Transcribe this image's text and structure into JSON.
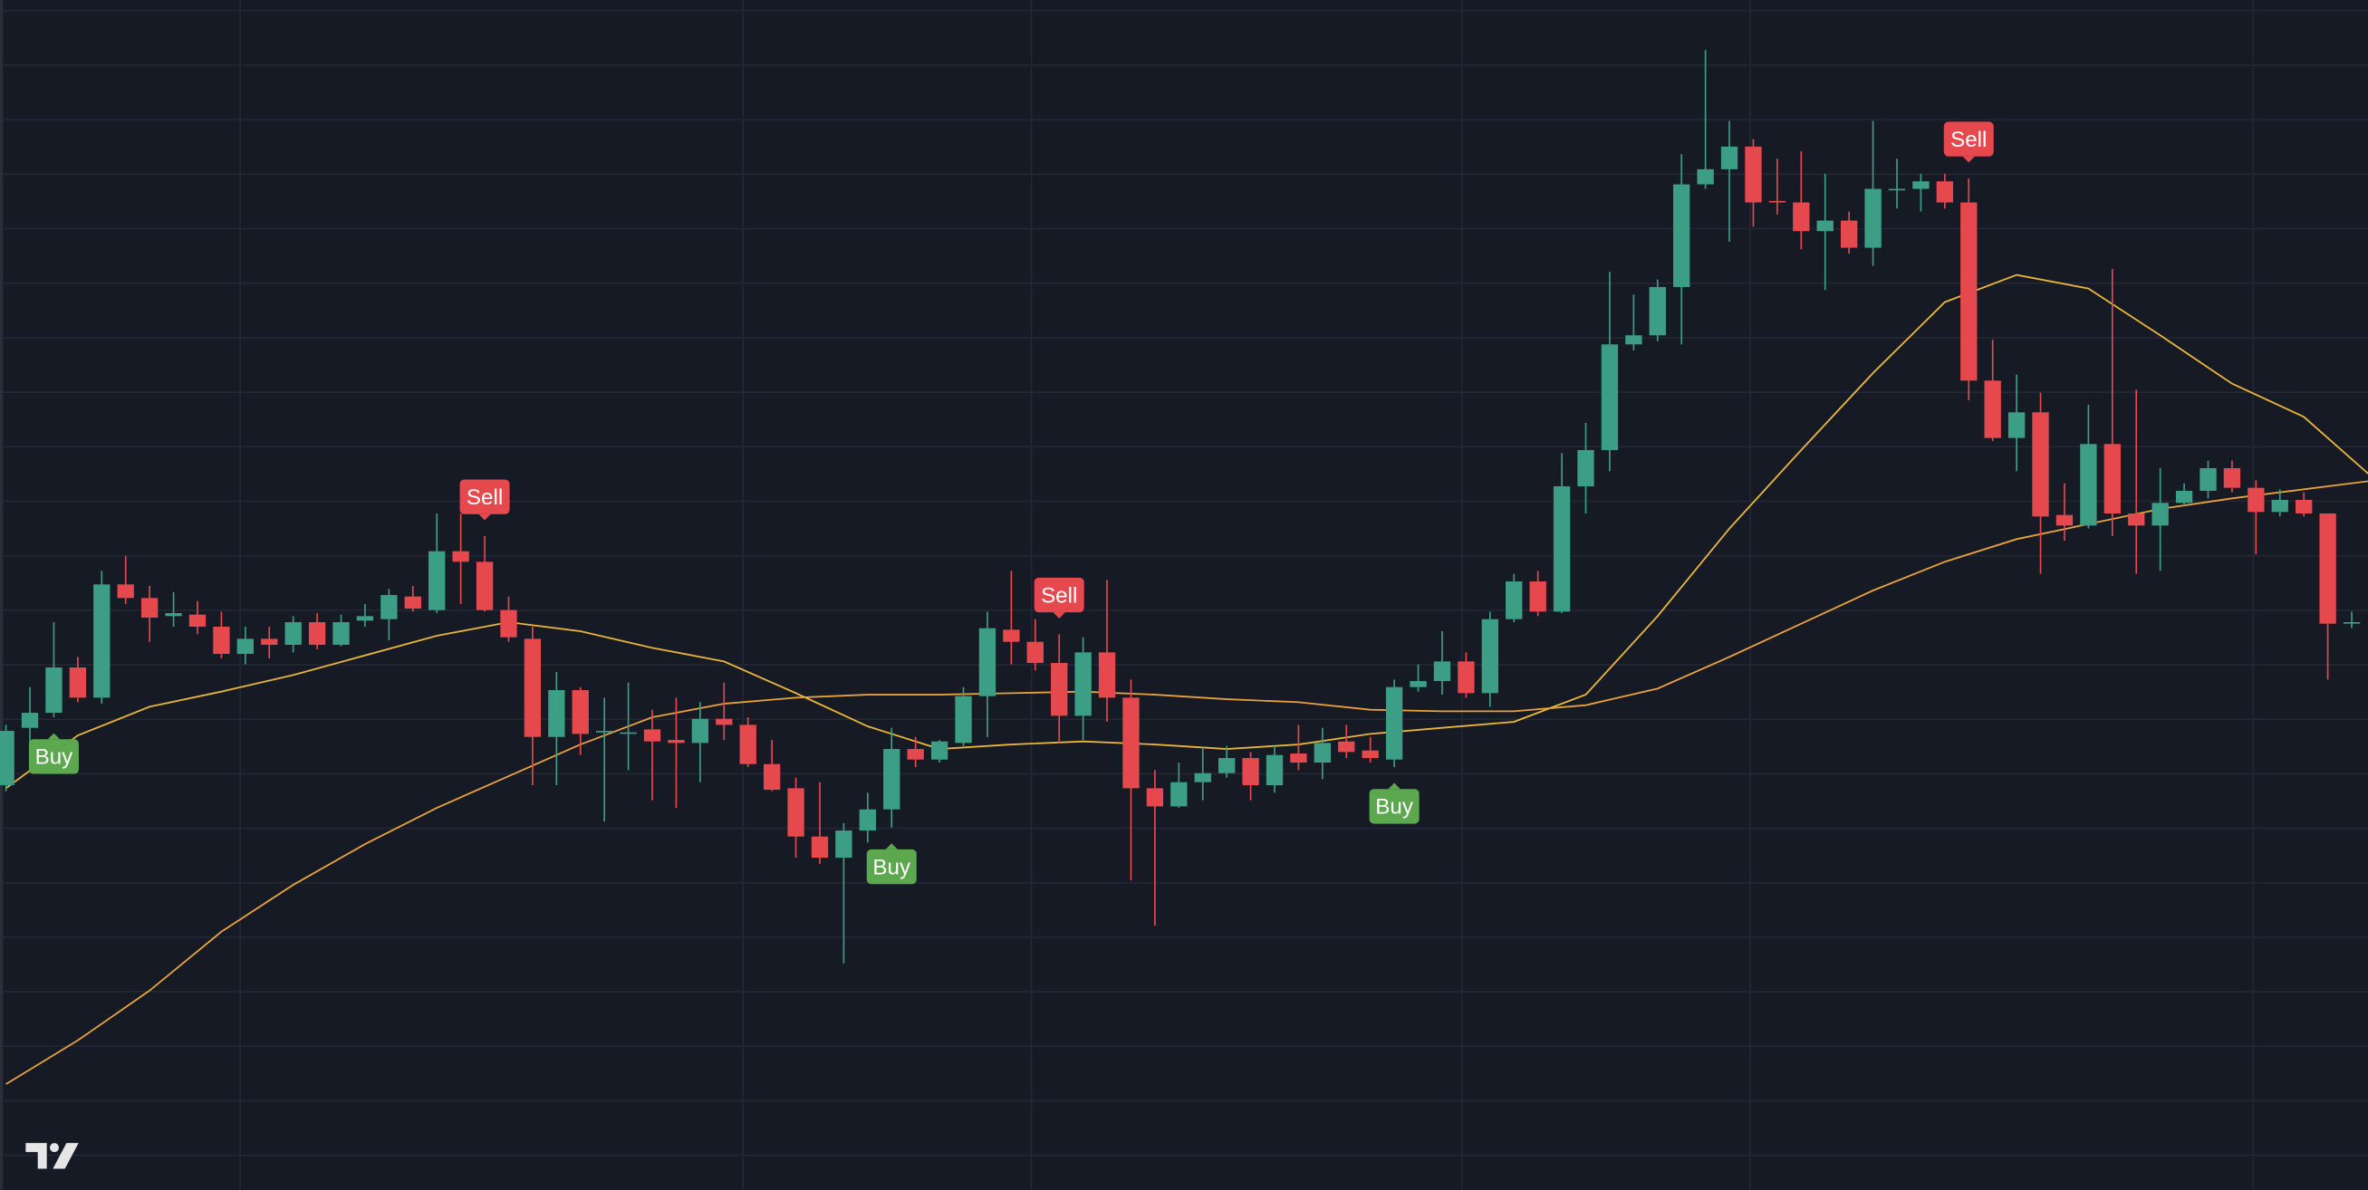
{
  "chart_data": {
    "type": "candlestick",
    "ylim": [
      0,
      788
    ],
    "xlim": [
      -0.25,
      98.68
    ],
    "grid": true,
    "up_color": "#3d9e86",
    "down_color": "#e5484d",
    "candles": {
      "open": [
        268,
        306,
        316,
        346,
        326,
        401,
        392,
        380,
        381,
        373,
        355,
        365,
        361,
        376,
        361,
        377,
        378,
        393,
        384,
        423,
        416,
        384,
        365,
        300,
        331,
        303,
        302,
        305,
        298,
        296,
        312,
        308,
        282,
        266,
        234,
        220,
        238,
        252,
        292,
        285,
        296,
        327,
        371,
        363,
        349,
        314,
        356,
        326,
        266,
        254,
        270,
        276,
        286,
        268,
        289,
        283,
        297,
        291,
        285,
        333,
        337,
        350,
        329,
        378,
        403,
        383,
        466,
        490,
        560,
        566,
        598,
        666,
        676,
        691,
        655,
        654,
        635,
        642,
        624,
        662,
        663,
        668,
        654,
        536,
        498,
        515,
        447,
        440,
        494,
        448,
        440,
        455,
        463,
        478,
        465,
        449,
        457,
        448,
        375
      ],
      "high": [
        308,
        333,
        376,
        353,
        410,
        420,
        400,
        396,
        390,
        383,
        373,
        373,
        380,
        382,
        381,
        388,
        398,
        400,
        448,
        448,
        433,
        393,
        373,
        343,
        333,
        326,
        336,
        318,
        326,
        323,
        336,
        313,
        298,
        273,
        270,
        243,
        263,
        306,
        300,
        298,
        333,
        383,
        410,
        378,
        368,
        366,
        404,
        338,
        278,
        283,
        293,
        294,
        290,
        294,
        308,
        306,
        308,
        300,
        338,
        348,
        370,
        356,
        383,
        408,
        410,
        488,
        508,
        608,
        593,
        603,
        686,
        755,
        708,
        696,
        683,
        688,
        673,
        648,
        708,
        683,
        673,
        673,
        670,
        563,
        540,
        528,
        468,
        520,
        610,
        530,
        478,
        468,
        483,
        483,
        470,
        464,
        462,
        448,
        383
      ],
      "low": [
        264,
        288,
        313,
        323,
        322,
        388,
        363,
        373,
        368,
        352,
        348,
        352,
        356,
        358,
        360,
        373,
        364,
        383,
        382,
        388,
        383,
        363,
        268,
        268,
        288,
        244,
        278,
        258,
        253,
        270,
        298,
        280,
        264,
        220,
        216,
        150,
        230,
        240,
        280,
        283,
        294,
        300,
        348,
        344,
        296,
        298,
        310,
        205,
        175,
        253,
        258,
        273,
        258,
        263,
        278,
        272,
        286,
        283,
        280,
        330,
        328,
        326,
        320,
        376,
        380,
        382,
        448,
        476,
        556,
        562,
        560,
        663,
        628,
        638,
        646,
        623,
        596,
        620,
        612,
        650,
        648,
        650,
        523,
        496,
        476,
        408,
        430,
        438,
        433,
        408,
        410,
        453,
        458,
        462,
        421,
        446,
        446,
        338,
        372
      ],
      "close": [
        304,
        316,
        346,
        326,
        401,
        392,
        379,
        382,
        373,
        355,
        365,
        361,
        376,
        361,
        376,
        380,
        394,
        385,
        423,
        416,
        384,
        366,
        300,
        331,
        302,
        304,
        303,
        297,
        296,
        312,
        308,
        282,
        265,
        234,
        220,
        238,
        252,
        292,
        285,
        297,
        327,
        372,
        363,
        349,
        314,
        356,
        326,
        266,
        254,
        270,
        276,
        286,
        268,
        288,
        283,
        296,
        290,
        286,
        333,
        337,
        350,
        329,
        378,
        403,
        383,
        466,
        490,
        560,
        566,
        598,
        666,
        676,
        691,
        654,
        654,
        635,
        642,
        624,
        663,
        663,
        668,
        654,
        536,
        498,
        515,
        446,
        440,
        494,
        448,
        440,
        455,
        463,
        478,
        465,
        449,
        457,
        448,
        375,
        376
      ]
    },
    "series": [
      {
        "color": "#e9a23b",
        "x": [
          0,
          3,
          6,
          9,
          12,
          15,
          18,
          21,
          24,
          27,
          30,
          33,
          36,
          39,
          42,
          45,
          48,
          51,
          54,
          57,
          60,
          63,
          66,
          69,
          72,
          75,
          78,
          81,
          84,
          87,
          90,
          93,
          96,
          99
        ],
        "values": [
          70,
          99,
          132,
          171,
          202,
          229,
          253,
          274,
          295,
          313,
          322,
          326,
          328,
          328,
          329,
          330,
          328,
          325,
          323,
          318,
          317,
          317,
          321,
          332,
          353,
          375,
          397,
          416,
          431,
          441,
          451,
          458,
          464,
          470
        ]
      },
      {
        "color": "#e8b53a",
        "x": [
          0,
          3,
          6,
          9,
          12,
          15,
          18,
          21,
          24,
          27,
          30,
          33,
          36,
          39,
          42,
          45,
          48,
          51,
          54,
          57,
          60,
          63,
          66,
          69,
          72,
          75,
          78,
          81,
          84,
          87,
          90,
          93,
          96,
          99
        ],
        "values": [
          266,
          301,
          320,
          330,
          341,
          354,
          367,
          376,
          370,
          359,
          350,
          329,
          307,
          292,
          295,
          297,
          295,
          292,
          295,
          302,
          306,
          310,
          328,
          380,
          438,
          490,
          541,
          588,
          606,
          597,
          566,
          534,
          512,
          470
        ]
      }
    ],
    "signals": [
      {
        "candle": 2,
        "label": "Buy",
        "color": "#5ba84f"
      },
      {
        "candle": 20,
        "label": "Sell",
        "color": "#e5484d"
      },
      {
        "candle": 37,
        "label": "Buy",
        "color": "#5ba84f"
      },
      {
        "candle": 44,
        "label": "Sell",
        "color": "#e5484d"
      },
      {
        "candle": 58,
        "label": "Buy",
        "color": "#5ba84f"
      },
      {
        "candle": 82,
        "label": "Sell",
        "color": "#e5484d"
      }
    ]
  }
}
